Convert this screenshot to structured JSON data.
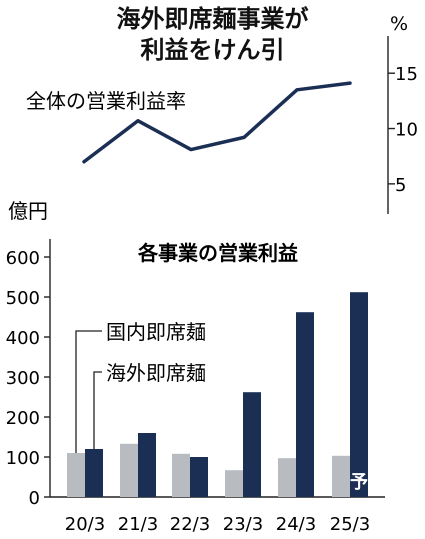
{
  "figure": {
    "title_lines": [
      "海外即席麺事業が",
      "利益をけん引"
    ]
  },
  "chart_data": [
    {
      "type": "line",
      "title": "",
      "series": [
        {
          "name": "全体の営業利益率",
          "values": [
            7.0,
            10.7,
            8.1,
            9.2,
            13.5,
            14.1
          ]
        }
      ],
      "x": [
        "20/3",
        "21/3",
        "22/3",
        "23/3",
        "24/3",
        "25/3"
      ],
      "y_unit": "%",
      "ylim": [
        3,
        18
      ],
      "y_ticks": [
        5,
        10,
        15
      ],
      "y_axis_side": "right",
      "color": "#1b2f55",
      "grid": false,
      "legend": "series label at top-left, inside plot"
    },
    {
      "type": "bar",
      "title": "各事業の営業利益",
      "y_unit": "億円",
      "categories": [
        "20/3",
        "21/3",
        "22/3",
        "23/3",
        "24/3",
        "25/3"
      ],
      "series": [
        {
          "name": "国内即席麺",
          "values": [
            110,
            133,
            108,
            67,
            97,
            103
          ],
          "color": "#b8bcc1"
        },
        {
          "name": "海外即席麺",
          "values": [
            120,
            160,
            100,
            262,
            462,
            512
          ],
          "color": "#1b2f55"
        }
      ],
      "ylim": [
        0,
        600
      ],
      "y_ticks": [
        0,
        100,
        200,
        300,
        400,
        500,
        600
      ],
      "grid": false,
      "legend": "leader lines pointing to the 20/3 bars",
      "annotations": [
        {
          "category": "25/3",
          "text": "予"
        }
      ]
    }
  ]
}
